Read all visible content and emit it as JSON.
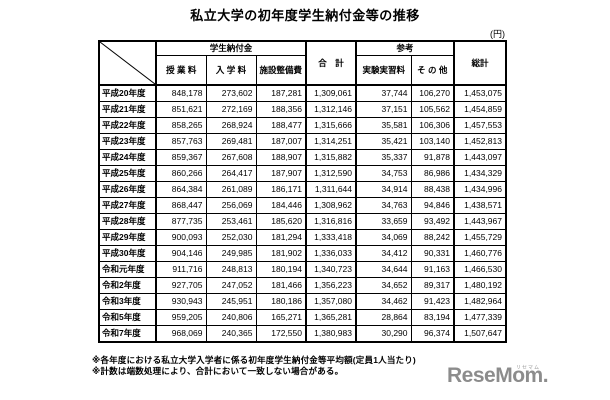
{
  "title": "私立大学の初年度学生納付金等の推移",
  "unit_label": "(円)",
  "header": {
    "group_student": "学生納付金",
    "group_reference": "参考",
    "col_tuition": "授 業 料",
    "col_admission": "入 学 料",
    "col_facility": "施設整備費",
    "col_subtotal": "合　計",
    "col_experiment": "実験実習料",
    "col_other": "そ の 他",
    "col_grand_total": "総計"
  },
  "chart_data": {
    "type": "table",
    "title": "私立大学の初年度学生納付金等の推移",
    "unit": "円",
    "column_groups": [
      {
        "label": "学生納付金",
        "columns": [
          "授業料",
          "入学料",
          "施設整備費"
        ]
      },
      {
        "label": "合計",
        "columns": []
      },
      {
        "label": "参考",
        "columns": [
          "実験実習料",
          "その他"
        ]
      },
      {
        "label": "総計",
        "columns": []
      }
    ],
    "columns": [
      "授業料",
      "入学料",
      "施設整備費",
      "合計",
      "実験実習料",
      "その他",
      "総計"
    ],
    "rows": [
      {
        "label": "平成20年度",
        "values": [
          848178,
          273602,
          187281,
          1309061,
          37744,
          106270,
          1453075
        ]
      },
      {
        "label": "平成21年度",
        "values": [
          851621,
          272169,
          188356,
          1312146,
          37151,
          105562,
          1454859
        ]
      },
      {
        "label": "平成22年度",
        "values": [
          858265,
          268924,
          188477,
          1315666,
          35581,
          106306,
          1457553
        ]
      },
      {
        "label": "平成23年度",
        "values": [
          857763,
          269481,
          187007,
          1314251,
          35421,
          103140,
          1452813
        ]
      },
      {
        "label": "平成24年度",
        "values": [
          859367,
          267608,
          188907,
          1315882,
          35337,
          91878,
          1443097
        ]
      },
      {
        "label": "平成25年度",
        "values": [
          860266,
          264417,
          187907,
          1312590,
          34753,
          86986,
          1434329
        ]
      },
      {
        "label": "平成26年度",
        "values": [
          864384,
          261089,
          186171,
          1311644,
          34914,
          88438,
          1434996
        ]
      },
      {
        "label": "平成27年度",
        "values": [
          868447,
          256069,
          184446,
          1308962,
          34763,
          94846,
          1438571
        ]
      },
      {
        "label": "平成28年度",
        "values": [
          877735,
          253461,
          185620,
          1316816,
          33659,
          93492,
          1443967
        ]
      },
      {
        "label": "平成29年度",
        "values": [
          900093,
          252030,
          181294,
          1333418,
          34069,
          88242,
          1455729
        ]
      },
      {
        "label": "平成30年度",
        "values": [
          904146,
          249985,
          181902,
          1336033,
          34412,
          90331,
          1460776
        ]
      },
      {
        "label": "令和元年度",
        "values": [
          911716,
          248813,
          180194,
          1340723,
          34644,
          91163,
          1466530
        ]
      },
      {
        "label": "令和2年度",
        "values": [
          927705,
          247052,
          181466,
          1356223,
          34652,
          89317,
          1480192
        ]
      },
      {
        "label": "令和3年度",
        "values": [
          930943,
          245951,
          180186,
          1357080,
          34462,
          91423,
          1482964
        ]
      },
      {
        "label": "令和5年度",
        "values": [
          959205,
          240806,
          165271,
          1365281,
          28864,
          83194,
          1477339
        ]
      },
      {
        "label": "令和7年度",
        "values": [
          968069,
          240365,
          172550,
          1380983,
          30290,
          96374,
          1507647
        ]
      }
    ]
  },
  "footnotes": [
    "※各年度における私立大学入学者に係る初年度学生納付金等平均額(定員1人当たり)",
    "※計数は端数処理により、合計において一致しない場合がある。"
  ],
  "logo": {
    "text": "ReseMom.",
    "ruby": "リセマム"
  }
}
